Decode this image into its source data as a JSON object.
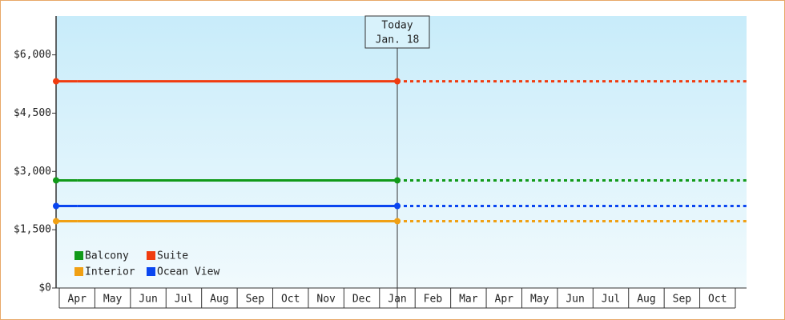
{
  "chart_data": {
    "type": "line",
    "categories": [
      "Apr",
      "May",
      "Jun",
      "Jul",
      "Aug",
      "Sep",
      "Oct",
      "Nov",
      "Dec",
      "Jan",
      "Feb",
      "Mar",
      "Apr",
      "May",
      "Jun",
      "Jul",
      "Aug",
      "Sep",
      "Oct"
    ],
    "series": [
      {
        "name": "Balcony",
        "color": "#119a19",
        "values": [
          2770,
          2770,
          2770,
          2770,
          2770,
          2770,
          2770,
          2770,
          2770,
          2770,
          2770,
          2770,
          2770,
          2770,
          2770,
          2770,
          2770,
          2770,
          2770
        ]
      },
      {
        "name": "Suite",
        "color": "#f03c0f",
        "values": [
          5320,
          5320,
          5320,
          5320,
          5320,
          5320,
          5320,
          5320,
          5320,
          5320,
          5320,
          5320,
          5320,
          5320,
          5320,
          5320,
          5320,
          5320,
          5320
        ]
      },
      {
        "name": "Interior",
        "color": "#f0a014",
        "values": [
          1720,
          1720,
          1720,
          1720,
          1720,
          1720,
          1720,
          1720,
          1720,
          1720,
          1720,
          1720,
          1720,
          1720,
          1720,
          1720,
          1720,
          1720,
          1720
        ]
      },
      {
        "name": "Ocean View",
        "color": "#0a46f0",
        "values": [
          2110,
          2110,
          2110,
          2110,
          2110,
          2110,
          2110,
          2110,
          2110,
          2110,
          2110,
          2110,
          2110,
          2110,
          2110,
          2110,
          2110,
          2110,
          2110
        ]
      }
    ],
    "today_index": 9,
    "annotation": {
      "label": "Today",
      "date": "Jan. 18"
    },
    "ylim": [
      0,
      7000
    ],
    "yticks": [
      {
        "value": 0,
        "label": "$0"
      },
      {
        "value": 1500,
        "label": "$1,500"
      },
      {
        "value": 3000,
        "label": "$3,000"
      },
      {
        "value": 4500,
        "label": "$4,500"
      },
      {
        "value": 6000,
        "label": "$6,000"
      }
    ]
  }
}
